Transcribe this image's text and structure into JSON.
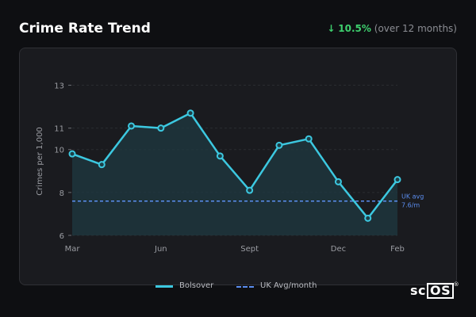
{
  "header": {
    "title": "Crime Rate Trend",
    "change_arrow": "↓",
    "change_value": "10.5%",
    "change_note": "(over 12 months)"
  },
  "legend": {
    "series_label": "Bolsover",
    "reference_label": "UK Avg/month"
  },
  "annotation": {
    "line1": "UK avg",
    "line2": "7.6/m"
  },
  "logo": {
    "text": "sc",
    "boxed": "OS",
    "mark": "®"
  },
  "colors": {
    "series": "#3cc8e0",
    "reference": "#5b8ef0",
    "positive_change": "#3ecf6e"
  },
  "chart_data": {
    "type": "line",
    "ylabel": "Crimes per 1,000",
    "xlabel": "",
    "ylim": [
      6,
      13.5
    ],
    "yticks": [
      6,
      8,
      10,
      11,
      13
    ],
    "ytick_labels": [
      "6",
      "8",
      "10",
      "11",
      "13"
    ],
    "x_tick_labels": [
      "Mar",
      "Jun",
      "Sept",
      "Dec",
      "Feb"
    ],
    "x_tick_positions": [
      0,
      3,
      6,
      9,
      11
    ],
    "grid": true,
    "legend_position": "bottom",
    "series": [
      {
        "name": "Bolsover",
        "values": [
          9.8,
          9.3,
          11.1,
          11.0,
          11.7,
          9.7,
          8.1,
          10.2,
          10.5,
          8.5,
          6.8,
          8.6
        ]
      }
    ],
    "reference_line": {
      "name": "UK Avg/month",
      "value": 7.6
    }
  }
}
